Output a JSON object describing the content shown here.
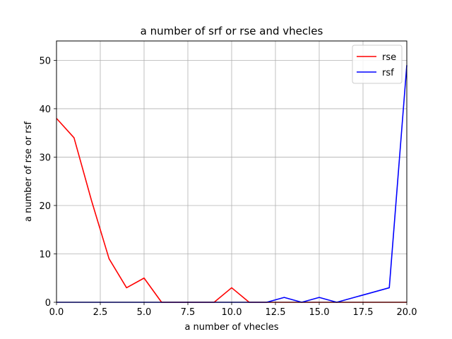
{
  "chart_data": {
    "type": "line",
    "title": "a number of srf or rse and vhecles",
    "xlabel": "a number of vhecles",
    "ylabel": "a number of rse or rsf",
    "xlim": [
      0,
      20
    ],
    "ylim": [
      0,
      54
    ],
    "xticks": [
      0,
      2.5,
      5,
      7.5,
      10,
      12.5,
      15,
      17.5,
      20
    ],
    "xtick_labels": [
      "0.0",
      "2.5",
      "5.0",
      "7.5",
      "10.0",
      "12.5",
      "15.0",
      "17.5",
      "20.0"
    ],
    "yticks": [
      0,
      10,
      20,
      30,
      40,
      50
    ],
    "ytick_labels": [
      "0",
      "10",
      "20",
      "30",
      "40",
      "50"
    ],
    "grid": true,
    "legend_position": "top-right",
    "x": [
      0,
      1,
      2,
      3,
      4,
      5,
      6,
      7,
      8,
      9,
      10,
      11,
      12,
      13,
      14,
      15,
      16,
      17,
      18,
      19,
      20
    ],
    "series": [
      {
        "name": "rse",
        "color": "#ff0000",
        "values": [
          38,
          34,
          21,
          9,
          3,
          5,
          0,
          0,
          0,
          0,
          3,
          0,
          0,
          0,
          0,
          0,
          0,
          0,
          0,
          0,
          0
        ]
      },
      {
        "name": "rsf",
        "color": "#0000ff",
        "values": [
          0,
          0,
          0,
          0,
          0,
          0,
          0,
          0,
          0,
          0,
          0,
          0,
          0,
          1,
          0,
          1,
          0,
          1,
          2,
          3,
          49
        ]
      }
    ]
  }
}
